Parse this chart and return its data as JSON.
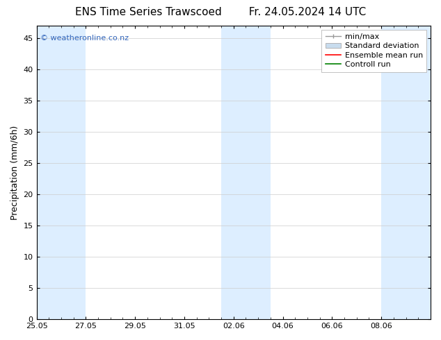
{
  "title_left": "ENS Time Series Trawscoed",
  "title_right": "Fr. 24.05.2024 14 UTC",
  "ylabel": "Precipitation (mm/6h)",
  "watermark": "© weatheronline.co.nz",
  "ylim": [
    0,
    47
  ],
  "yticks": [
    0,
    5,
    10,
    15,
    20,
    25,
    30,
    35,
    40,
    45
  ],
  "xtick_labels": [
    "25.05",
    "27.05",
    "29.05",
    "31.05",
    "02.06",
    "04.06",
    "06.06",
    "08.06"
  ],
  "xtick_days": [
    0,
    2,
    4,
    6,
    8,
    10,
    12,
    14
  ],
  "total_days": 16,
  "background_color": "#ffffff",
  "shaded_color": "#ddeeff",
  "shaded_bands": [
    {
      "start": 0.0,
      "end": 1.0
    },
    {
      "start": 1.0,
      "end": 2.0
    },
    {
      "start": 7.5,
      "end": 8.5
    },
    {
      "start": 8.5,
      "end": 9.5
    },
    {
      "start": 14.0,
      "end": 16.0
    }
  ],
  "legend_entries": [
    {
      "label": "min/max",
      "color": "#aaaaaa",
      "type": "errorbar"
    },
    {
      "label": "Standard deviation",
      "color": "#c8dcee",
      "type": "box"
    },
    {
      "label": "Ensemble mean run",
      "color": "#ff0000",
      "type": "line"
    },
    {
      "label": "Controll run",
      "color": "#008000",
      "type": "line"
    }
  ],
  "title_fontsize": 11,
  "axis_label_fontsize": 9,
  "tick_fontsize": 8,
  "legend_fontsize": 8,
  "watermark_color": "#3366bb",
  "watermark_fontsize": 8
}
